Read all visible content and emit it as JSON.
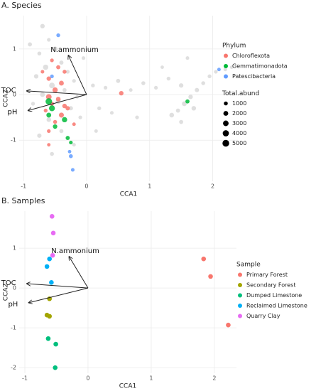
{
  "chart_data": [
    {
      "type": "scatter",
      "title": "A. Species",
      "xlabel": "CCA1",
      "ylabel": "CCA2",
      "xlim": [
        -1.07,
        2.4
      ],
      "ylim": [
        -1.9,
        1.73
      ],
      "xticks": [
        -1,
        0,
        1,
        2
      ],
      "yticks": [
        -1,
        0,
        1
      ],
      "grid": true,
      "legend_title": "Phylum",
      "series": [
        {
          "color": "#d9d9d9",
          "x": [
            -0.7,
            -0.6,
            -0.5,
            -0.75,
            -0.4,
            -0.65,
            -0.3,
            -0.8,
            -0.2,
            -0.55,
            -0.35,
            -0.7,
            -0.15,
            -0.45,
            -0.85,
            -0.25,
            -0.6,
            -0.1,
            -0.4,
            -0.75,
            -0.2,
            -0.55,
            0.1,
            0.3,
            0.5,
            0.7,
            0.9,
            1.1,
            1.3,
            1.5,
            0.4,
            0.8,
            1.2,
            1.6,
            1.35,
            1.45,
            1.55,
            1.65,
            1.75,
            1.85,
            1.95,
            2.05,
            2.2,
            2.3,
            1.5,
            1.7,
            0.2,
            -0.05,
            0.15,
            -0.9
          ],
          "y": [
            1.5,
            1.2,
            1.0,
            0.9,
            0.7,
            0.6,
            0.5,
            0.4,
            0.3,
            0.2,
            0.1,
            0.0,
            -0.05,
            -0.15,
            -0.2,
            -0.3,
            -0.55,
            -0.5,
            -0.8,
            -0.9,
            -1.1,
            -1.3,
            0.2,
            0.15,
            0.3,
            0.1,
            0.25,
            0.15,
            0.35,
            0.2,
            -0.4,
            -0.5,
            0.6,
            0.8,
            -0.45,
            -0.35,
            -0.2,
            -0.05,
            0.1,
            0.25,
            0.4,
            0.5,
            0.55,
            0.6,
            -0.6,
            -0.3,
            -0.3,
            0.8,
            -0.8,
            1.1
          ],
          "size": [
            1500,
            800,
            2000,
            1000,
            1200,
            2500,
            900,
            1500,
            800,
            3000,
            1000,
            1800,
            700,
            2200,
            900,
            1300,
            1600,
            800,
            1100,
            1400,
            700,
            1000,
            900,
            800,
            1200,
            700,
            1000,
            800,
            900,
            1500,
            700,
            800,
            600,
            700,
            1800,
            1200,
            2000,
            1500,
            1300,
            1000,
            900,
            800,
            700,
            600,
            1100,
            1600,
            900,
            800,
            700,
            1200
          ]
        },
        {
          "name": "Chloroflexota",
          "color": "#F8766D",
          "x": [
            -0.55,
            -0.45,
            -0.6,
            -0.4,
            -0.5,
            -0.6,
            -0.45,
            -0.55,
            -0.35,
            -0.65,
            -0.4,
            -0.5,
            -0.6,
            -0.3,
            -0.7,
            -0.6,
            0.55,
            -0.35,
            -0.2
          ],
          "y": [
            0.75,
            0.6,
            0.35,
            0.25,
            0.1,
            -0.05,
            -0.1,
            -0.2,
            -0.25,
            -0.35,
            -0.45,
            -0.6,
            -0.8,
            -0.3,
            0.5,
            -1.1,
            0.03,
            0.5,
            -0.65
          ],
          "size": [
            800,
            1200,
            1500,
            2000,
            2500,
            3000,
            1800,
            1200,
            1600,
            900,
            2200,
            1000,
            800,
            1400,
            700,
            600,
            1500,
            1000,
            700
          ]
        },
        {
          "name": "Gemmatimonadota",
          "color": "#00BA38",
          "x": [
            -0.55,
            -0.6,
            -0.35,
            -0.5,
            -0.3,
            -0.6,
            1.6,
            -0.25
          ],
          "y": [
            -0.3,
            -0.45,
            -0.55,
            -0.7,
            -0.95,
            -0.15,
            -0.15,
            -1.05
          ],
          "size": [
            3500,
            2000,
            2500,
            1500,
            1200,
            4500,
            1200,
            800
          ]
        },
        {
          "name": "Patescibacteria",
          "color": "#619CFF",
          "x": [
            -0.45,
            -0.25,
            -0.22,
            2.1,
            -0.27,
            -0.55
          ],
          "y": [
            1.3,
            -1.35,
            -1.65,
            0.55,
            -1.25,
            0.4
          ],
          "size": [
            900,
            1000,
            700,
            700,
            600,
            800
          ]
        }
      ],
      "size_legend": {
        "title": "Total.abund",
        "values": [
          1000,
          2000,
          3000,
          4000,
          5000
        ]
      },
      "arrows": [
        {
          "label": "N.ammonium",
          "x": -0.29,
          "y": 0.86
        },
        {
          "label": "TOC",
          "x": -0.95,
          "y": 0.08
        },
        {
          "label": "pH",
          "x": -0.93,
          "y": -0.35
        }
      ]
    },
    {
      "type": "scatter",
      "title": "B. Samples",
      "xlabel": "CCA1",
      "ylabel": "CCA2",
      "xlim": [
        -1.09,
        2.35
      ],
      "ylim": [
        -2.14,
        1.93
      ],
      "xticks": [
        -1,
        0,
        1,
        2
      ],
      "yticks": [
        -2,
        -1,
        0,
        1
      ],
      "grid": true,
      "legend_title": "Sample",
      "series": [
        {
          "name": "Primary Forest",
          "color": "#F8766D",
          "x": [
            1.83,
            1.94,
            2.22
          ],
          "y": [
            0.73,
            0.29,
            -0.93
          ]
        },
        {
          "name": "Secondary Forest",
          "color": "#A3A500",
          "x": [
            -0.61,
            -0.65,
            -0.61
          ],
          "y": [
            -0.27,
            -0.68,
            -0.71
          ]
        },
        {
          "name": "Dumped Limestone",
          "color": "#00BF7D",
          "x": [
            -0.63,
            -0.51,
            -0.52
          ],
          "y": [
            -1.27,
            -1.41,
            -2.0
          ]
        },
        {
          "name": "Reclaimed Limestone",
          "color": "#00B0F6",
          "x": [
            -0.61,
            -0.65,
            -0.58
          ],
          "y": [
            0.73,
            0.54,
            0.14
          ]
        },
        {
          "name": "Quarry Clay",
          "color": "#E76BF3",
          "x": [
            -0.57,
            -0.55,
            -0.56
          ],
          "y": [
            1.8,
            1.38,
            0.82
          ]
        }
      ],
      "arrows": [
        {
          "label": "N.ammonium",
          "x": -0.3,
          "y": 0.79
        },
        {
          "label": "TOC",
          "x": -0.97,
          "y": 0.11
        },
        {
          "label": "pH",
          "x": -0.94,
          "y": -0.37
        }
      ]
    }
  ]
}
